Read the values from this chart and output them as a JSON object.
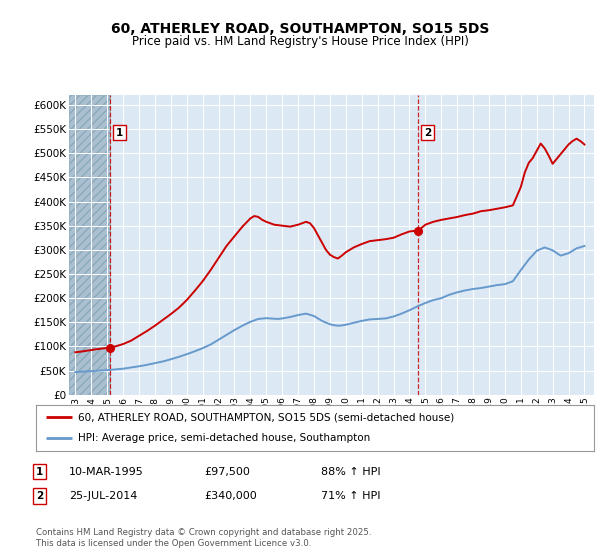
{
  "title": "60, ATHERLEY ROAD, SOUTHAMPTON, SO15 5DS",
  "subtitle": "Price paid vs. HM Land Registry's House Price Index (HPI)",
  "legend_line1": "60, ATHERLEY ROAD, SOUTHAMPTON, SO15 5DS (semi-detached house)",
  "legend_line2": "HPI: Average price, semi-detached house, Southampton",
  "sale1_date": "10-MAR-1995",
  "sale1_price": "£97,500",
  "sale1_hpi": "88% ↑ HPI",
  "sale1_year": 1995.19,
  "sale1_value": 97500,
  "sale2_date": "25-JUL-2014",
  "sale2_price": "£340,000",
  "sale2_hpi": "71% ↑ HPI",
  "sale2_year": 2014.56,
  "sale2_value": 340000,
  "footer": "Contains HM Land Registry data © Crown copyright and database right 2025.\nThis data is licensed under the Open Government Licence v3.0.",
  "ylim": [
    0,
    620000
  ],
  "xlim_start": 1992.6,
  "xlim_end": 2025.6,
  "hatch_end_year": 1995.19,
  "bg_color": "#dce9f5",
  "hatch_color": "#b8cfe0",
  "red_color": "#cc0000",
  "blue_color": "#6699cc",
  "marker_box_color": "#cc0000",
  "years_red": [
    1993.0,
    1993.25,
    1993.5,
    1993.75,
    1994.0,
    1994.25,
    1994.5,
    1994.75,
    1995.19,
    1995.5,
    1996.0,
    1996.5,
    1997.0,
    1997.5,
    1998.0,
    1998.5,
    1999.0,
    1999.5,
    2000.0,
    2000.5,
    2001.0,
    2001.5,
    2002.0,
    2002.5,
    2003.0,
    2003.5,
    2004.0,
    2004.25,
    2004.5,
    2004.75,
    2005.0,
    2005.5,
    2006.0,
    2006.5,
    2007.0,
    2007.25,
    2007.5,
    2007.75,
    2008.0,
    2008.25,
    2008.5,
    2008.75,
    2009.0,
    2009.25,
    2009.5,
    2009.75,
    2010.0,
    2010.5,
    2011.0,
    2011.5,
    2012.0,
    2012.5,
    2013.0,
    2013.5,
    2014.0,
    2014.56,
    2015.0,
    2015.5,
    2016.0,
    2016.5,
    2017.0,
    2017.5,
    2018.0,
    2018.5,
    2019.0,
    2019.5,
    2020.0,
    2020.5,
    2021.0,
    2021.25,
    2021.5,
    2021.75,
    2022.0,
    2022.25,
    2022.5,
    2022.75,
    2023.0,
    2023.25,
    2023.5,
    2023.75,
    2024.0,
    2024.25,
    2024.5,
    2024.75,
    2025.0
  ],
  "values_red": [
    88000,
    89000,
    90000,
    91500,
    92500,
    94000,
    95000,
    96000,
    97500,
    100000,
    105000,
    112000,
    122000,
    132000,
    143000,
    155000,
    167000,
    180000,
    196000,
    215000,
    235000,
    258000,
    283000,
    308000,
    328000,
    348000,
    365000,
    370000,
    368000,
    362000,
    358000,
    352000,
    350000,
    348000,
    352000,
    355000,
    358000,
    355000,
    345000,
    330000,
    315000,
    300000,
    290000,
    285000,
    282000,
    288000,
    295000,
    305000,
    312000,
    318000,
    320000,
    322000,
    325000,
    332000,
    338000,
    340000,
    352000,
    358000,
    362000,
    365000,
    368000,
    372000,
    375000,
    380000,
    382000,
    385000,
    388000,
    392000,
    430000,
    460000,
    480000,
    490000,
    505000,
    520000,
    510000,
    495000,
    478000,
    488000,
    498000,
    508000,
    518000,
    525000,
    530000,
    525000,
    518000
  ],
  "years_blue": [
    1993.0,
    1993.5,
    1994.0,
    1994.5,
    1995.0,
    1995.5,
    1996.0,
    1996.5,
    1997.0,
    1997.5,
    1998.0,
    1998.5,
    1999.0,
    1999.5,
    2000.0,
    2000.5,
    2001.0,
    2001.5,
    2002.0,
    2002.5,
    2003.0,
    2003.5,
    2004.0,
    2004.5,
    2005.0,
    2005.25,
    2005.5,
    2005.75,
    2006.0,
    2006.5,
    2007.0,
    2007.5,
    2008.0,
    2008.5,
    2009.0,
    2009.25,
    2009.5,
    2009.75,
    2010.0,
    2010.5,
    2011.0,
    2011.5,
    2012.0,
    2012.5,
    2013.0,
    2013.5,
    2014.0,
    2014.5,
    2015.0,
    2015.5,
    2016.0,
    2016.5,
    2017.0,
    2017.5,
    2018.0,
    2018.5,
    2019.0,
    2019.5,
    2020.0,
    2020.5,
    2021.0,
    2021.5,
    2022.0,
    2022.5,
    2023.0,
    2023.5,
    2024.0,
    2024.5,
    2025.0
  ],
  "values_blue": [
    47000,
    48000,
    49000,
    50000,
    51000,
    52500,
    54000,
    56500,
    59000,
    62000,
    65500,
    69000,
    73500,
    78500,
    84000,
    90000,
    96500,
    104000,
    114000,
    124000,
    134000,
    143000,
    151000,
    157000,
    158500,
    158000,
    157500,
    157000,
    158000,
    161000,
    165000,
    168000,
    163000,
    153000,
    146000,
    144000,
    143000,
    143500,
    145000,
    149000,
    153000,
    156000,
    157000,
    158000,
    162000,
    168000,
    175000,
    183000,
    190000,
    196000,
    200000,
    207000,
    212000,
    216000,
    219000,
    221000,
    224000,
    227000,
    229000,
    235000,
    258000,
    280000,
    298000,
    305000,
    299000,
    288000,
    293000,
    303000,
    308000
  ]
}
